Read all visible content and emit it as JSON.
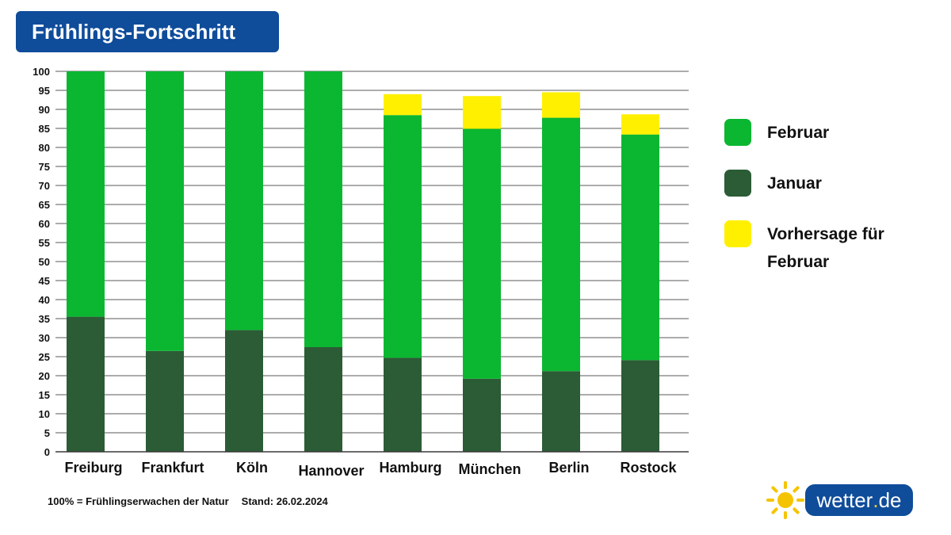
{
  "header": {
    "title": "Frühlings-Fortschritt"
  },
  "legend": {
    "items": [
      {
        "label": "Februar",
        "color": "#0bb731"
      },
      {
        "label": "Januar",
        "color": "#2b5c35"
      },
      {
        "label": "Vorhersage für Februar",
        "color": "#fff000"
      }
    ]
  },
  "footer": {
    "note": "100% = Frühlingserwachen der Natur",
    "stand": "Stand: 26.02.2024"
  },
  "logo": {
    "text_main": "wetter",
    "text_dot": ".",
    "text_tld": "de"
  },
  "chart_data": {
    "type": "bar",
    "stacked": true,
    "categories": [
      "Freiburg",
      "Frankfurt",
      "Köln",
      "Hannover",
      "Hamburg",
      "München",
      "Berlin",
      "Rostock"
    ],
    "series": [
      {
        "name": "Januar",
        "color": "#2b5c35",
        "values": [
          35.5,
          26.5,
          32,
          27.5,
          24.7,
          19.2,
          21.2,
          24.1
        ]
      },
      {
        "name": "Februar",
        "color": "#0bb731",
        "values": [
          64.5,
          73.5,
          68,
          72.5,
          63.8,
          65.7,
          66.6,
          59.3
        ]
      },
      {
        "name": "Vorhersage für Februar",
        "color": "#fff000",
        "values": [
          0,
          0,
          0,
          0,
          5.5,
          8.6,
          6.7,
          5.3
        ]
      }
    ],
    "ylim": [
      0,
      100
    ],
    "yticks": [
      0,
      5,
      10,
      15,
      20,
      25,
      30,
      35,
      40,
      45,
      50,
      55,
      60,
      65,
      70,
      75,
      80,
      85,
      90,
      95,
      100
    ],
    "grid": true,
    "legend_position": "right"
  }
}
